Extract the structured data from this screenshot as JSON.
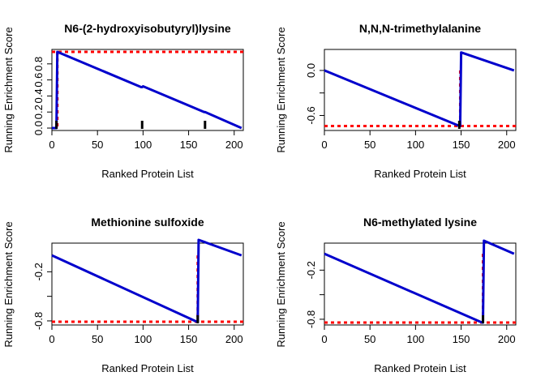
{
  "chart_data": [
    {
      "type": "line",
      "title": "N6-(2-hydroxyisobutyryl)lysine",
      "xlabel": "Ranked Protein List",
      "ylabel": "Running Enrichment Score",
      "xlim": [
        0,
        210
      ],
      "ylim": [
        -0.03,
        0.98
      ],
      "xticks": [
        0,
        50,
        100,
        150,
        200
      ],
      "yticks": [
        0.0,
        0.2,
        0.4,
        0.6,
        0.8
      ],
      "ytick_labels": [
        "0.0",
        "0.2",
        "0.4",
        "0.6",
        "0.8"
      ],
      "series": [
        {
          "color": "#0000cc",
          "x": [
            0,
            1,
            5,
            6,
            98,
            99,
            100,
            167,
            168,
            208
          ],
          "y": [
            0.0,
            0.0,
            0.0,
            0.95,
            0.51,
            0.51,
            0.52,
            0.2,
            0.2,
            0.0
          ]
        }
      ],
      "hits": [
        5,
        99,
        168
      ],
      "es_position": 6,
      "es_value": 0.95,
      "ref_color": "#ff0000"
    },
    {
      "type": "line",
      "title": "N,N,N-trimethylalanine",
      "xlabel": "Ranked Protein List",
      "ylabel": "Running Enrichment Score",
      "xlim": [
        0,
        210
      ],
      "ylim": [
        -0.8,
        0.28
      ],
      "xticks": [
        0,
        50,
        100,
        150,
        200
      ],
      "yticks": [
        -0.6,
        -0.3,
        0.0
      ],
      "ytick_labels": [
        "-0.6",
        "",
        "0.0"
      ],
      "series": [
        {
          "color": "#0000cc",
          "x": [
            0,
            148,
            149,
            150,
            208
          ],
          "y": [
            0.0,
            -0.74,
            -0.74,
            0.24,
            0.0
          ]
        }
      ],
      "hits": [
        148
      ],
      "es_position": 149,
      "es_value": -0.74,
      "ref_color": "#ff0000"
    },
    {
      "type": "line",
      "title": "Methionine sulfoxide",
      "xlabel": "Ranked Protein List",
      "ylabel": "Running Enrichment Score",
      "xlim": [
        0,
        210
      ],
      "ylim": [
        -0.85,
        0.15
      ],
      "xticks": [
        0,
        50,
        100,
        150,
        200
      ],
      "yticks": [
        -0.8,
        -0.5,
        -0.2
      ],
      "ytick_labels": [
        "-0.8",
        "",
        "-0.2"
      ],
      "series": [
        {
          "color": "#0000cc",
          "x": [
            0,
            159,
            160,
            161,
            208
          ],
          "y": [
            0.0,
            -0.81,
            -0.81,
            0.19,
            0.0
          ]
        }
      ],
      "hits": [
        160
      ],
      "es_position": 160,
      "es_value": -0.81,
      "ref_color": "#ff0000"
    },
    {
      "type": "line",
      "title": "N6-methylated lysine",
      "xlabel": "Ranked Protein List",
      "ylabel": "Running Enrichment Score",
      "xlim": [
        0,
        210
      ],
      "ylim": [
        -0.87,
        0.13
      ],
      "xticks": [
        0,
        50,
        100,
        150,
        200
      ],
      "yticks": [
        -0.8,
        -0.5,
        -0.2
      ],
      "ytick_labels": [
        "-0.8",
        "",
        "-0.2"
      ],
      "series": [
        {
          "color": "#0000cc",
          "x": [
            0,
            173,
            174,
            175,
            208
          ],
          "y": [
            0.0,
            -0.84,
            -0.84,
            0.16,
            0.0
          ]
        }
      ],
      "hits": [
        174
      ],
      "es_position": 174,
      "es_value": -0.84,
      "ref_color": "#ff0000"
    }
  ]
}
